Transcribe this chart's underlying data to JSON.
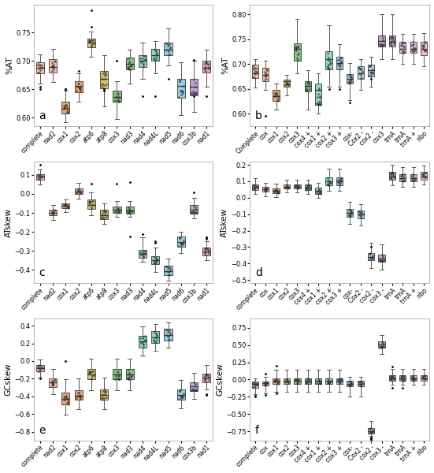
{
  "panel_a": {
    "label": "a",
    "ylabel": "%AT",
    "ylim": [
      0.585,
      0.8
    ],
    "yticks": [
      0.6,
      0.65,
      0.7,
      0.75
    ],
    "categories": [
      "complete",
      "nad2",
      "cox1",
      "cox2",
      "atp6",
      "atp8",
      "cox3",
      "nad3",
      "nad4",
      "nad4L",
      "nad5",
      "nad6",
      "cox3b",
      "nad1"
    ],
    "colors": [
      "#F4A080",
      "#F4A080",
      "#E07030",
      "#E07030",
      "#B8A020",
      "#B8A020",
      "#40A040",
      "#40A040",
      "#50C0A0",
      "#50C0A0",
      "#60B0D0",
      "#60B0D0",
      "#A070B0",
      "#E070A0"
    ],
    "stats": [
      {
        "med": 0.688,
        "q1": 0.678,
        "q3": 0.698,
        "whislo": 0.66,
        "whishi": 0.712,
        "fliers": [
          0.655,
          0.65
        ]
      },
      {
        "med": 0.69,
        "q1": 0.68,
        "q3": 0.703,
        "whislo": 0.663,
        "whishi": 0.722,
        "fliers": []
      },
      {
        "med": 0.615,
        "q1": 0.608,
        "q3": 0.628,
        "whislo": 0.592,
        "whishi": 0.648,
        "fliers": [
          0.65,
          0.65
        ]
      },
      {
        "med": 0.656,
        "q1": 0.645,
        "q3": 0.665,
        "whislo": 0.628,
        "whishi": 0.678,
        "fliers": [
          0.682
        ]
      },
      {
        "med": 0.733,
        "q1": 0.724,
        "q3": 0.74,
        "whislo": 0.708,
        "whishi": 0.752,
        "fliers": [
          0.76,
          0.79
        ]
      },
      {
        "med": 0.668,
        "q1": 0.652,
        "q3": 0.682,
        "whislo": 0.62,
        "whishi": 0.71,
        "fliers": [
          0.648,
          0.65
        ]
      },
      {
        "med": 0.637,
        "q1": 0.628,
        "q3": 0.648,
        "whislo": 0.598,
        "whishi": 0.665,
        "fliers": [
          0.7
        ]
      },
      {
        "med": 0.695,
        "q1": 0.685,
        "q3": 0.706,
        "whislo": 0.66,
        "whishi": 0.72,
        "fliers": []
      },
      {
        "med": 0.7,
        "q1": 0.69,
        "q3": 0.71,
        "whislo": 0.668,
        "whishi": 0.733,
        "fliers": [
          0.638
        ]
      },
      {
        "med": 0.71,
        "q1": 0.7,
        "q3": 0.722,
        "whislo": 0.678,
        "whishi": 0.735,
        "fliers": [
          0.638
        ]
      },
      {
        "med": 0.72,
        "q1": 0.71,
        "q3": 0.733,
        "whislo": 0.692,
        "whishi": 0.757,
        "fliers": [
          0.668
        ]
      },
      {
        "med": 0.656,
        "q1": 0.635,
        "q3": 0.668,
        "whislo": 0.605,
        "whishi": 0.698,
        "fliers": []
      },
      {
        "med": 0.655,
        "q1": 0.64,
        "q3": 0.668,
        "whislo": 0.61,
        "whishi": 0.7,
        "fliers": [
          0.638,
          0.702
        ]
      },
      {
        "med": 0.688,
        "q1": 0.68,
        "q3": 0.7,
        "whislo": 0.655,
        "whishi": 0.72,
        "fliers": [
          0.638
        ]
      }
    ]
  },
  "panel_b": {
    "label": "b",
    "ylabel": "%AT",
    "ylim": [
      0.575,
      0.82
    ],
    "yticks": [
      0.6,
      0.65,
      0.7,
      0.75,
      0.8
    ],
    "categories": [
      "Complete",
      "cox",
      "cox1",
      "cox2",
      "cox3",
      "cox4 +",
      "cox1 +",
      "cox2 +",
      "cox3 +",
      "cox-",
      "Cox2 -",
      "cox2 -",
      "cox3",
      "trnA",
      "trnA",
      "trnA +",
      "ribo"
    ],
    "colors": [
      "#F4A080",
      "#F4A080",
      "#E07030",
      "#B8A020",
      "#40A040",
      "#40A040",
      "#50C0A0",
      "#50C0A0",
      "#60B0D0",
      "#60B0D0",
      "#87BCCC",
      "#87BCCC",
      "#9A72AC",
      "#9A72AC",
      "#B898C8",
      "#D898C8",
      "#E898C8"
    ],
    "stats": [
      {
        "med": 0.682,
        "q1": 0.672,
        "q3": 0.698,
        "whislo": 0.652,
        "whishi": 0.71,
        "fliers": []
      },
      {
        "med": 0.678,
        "q1": 0.665,
        "q3": 0.692,
        "whislo": 0.648,
        "whishi": 0.706,
        "fliers": [
          0.595
        ]
      },
      {
        "med": 0.636,
        "q1": 0.626,
        "q3": 0.648,
        "whislo": 0.608,
        "whishi": 0.66,
        "fliers": []
      },
      {
        "med": 0.665,
        "q1": 0.655,
        "q3": 0.668,
        "whislo": 0.637,
        "whishi": 0.678,
        "fliers": []
      },
      {
        "med": 0.73,
        "q1": 0.706,
        "q3": 0.742,
        "whislo": 0.682,
        "whishi": 0.79,
        "fliers": []
      },
      {
        "med": 0.656,
        "q1": 0.645,
        "q3": 0.665,
        "whislo": 0.608,
        "whishi": 0.688,
        "fliers": []
      },
      {
        "med": 0.648,
        "q1": 0.618,
        "q3": 0.66,
        "whislo": 0.6,
        "whishi": 0.682,
        "fliers": [
          0.62
        ]
      },
      {
        "med": 0.71,
        "q1": 0.69,
        "q3": 0.725,
        "whislo": 0.655,
        "whishi": 0.778,
        "fliers": [
          0.65
        ]
      },
      {
        "med": 0.702,
        "q1": 0.69,
        "q3": 0.714,
        "whislo": 0.655,
        "whishi": 0.74,
        "fliers": [
          0.65
        ]
      },
      {
        "med": 0.67,
        "q1": 0.66,
        "q3": 0.68,
        "whislo": 0.628,
        "whishi": 0.702,
        "fliers": [
          0.622
        ]
      },
      {
        "med": 0.682,
        "q1": 0.67,
        "q3": 0.695,
        "whislo": 0.648,
        "whishi": 0.71,
        "fliers": []
      },
      {
        "med": 0.688,
        "q1": 0.675,
        "q3": 0.698,
        "whislo": 0.655,
        "whishi": 0.715,
        "fliers": [
          0.67
        ]
      },
      {
        "med": 0.746,
        "q1": 0.736,
        "q3": 0.758,
        "whislo": 0.71,
        "whishi": 0.8,
        "fliers": []
      },
      {
        "med": 0.745,
        "q1": 0.735,
        "q3": 0.758,
        "whislo": 0.71,
        "whishi": 0.8,
        "fliers": []
      },
      {
        "med": 0.73,
        "q1": 0.722,
        "q3": 0.745,
        "whislo": 0.7,
        "whishi": 0.76,
        "fliers": []
      },
      {
        "med": 0.73,
        "q1": 0.722,
        "q3": 0.745,
        "whislo": 0.7,
        "whishi": 0.76,
        "fliers": []
      },
      {
        "med": 0.73,
        "q1": 0.718,
        "q3": 0.745,
        "whislo": 0.695,
        "whishi": 0.762,
        "fliers": []
      }
    ]
  },
  "panel_c": {
    "label": "c",
    "ylabel": "ATskew",
    "ylim": [
      -0.47,
      0.17
    ],
    "yticks": [
      -0.4,
      -0.3,
      -0.2,
      -0.1,
      0.0,
      0.1
    ],
    "categories": [
      "complete",
      "nad2",
      "cox1",
      "cox2",
      "atp6",
      "atp8",
      "cox3",
      "nad3",
      "nad4",
      "nad4L",
      "nad5",
      "nad6",
      "cox3b",
      "nad1"
    ],
    "colors": [
      "#F4A080",
      "#F4A080",
      "#E07030",
      "#E07030",
      "#B8A020",
      "#B8A020",
      "#40A040",
      "#40A040",
      "#50C0A0",
      "#50C0A0",
      "#60B0D0",
      "#60B0D0",
      "#A070B0",
      "#E070A0"
    ],
    "stats": [
      {
        "med": 0.09,
        "q1": 0.075,
        "q3": 0.105,
        "whislo": 0.05,
        "whishi": 0.13,
        "fliers": [
          0.155
        ]
      },
      {
        "med": -0.098,
        "q1": -0.112,
        "q3": -0.082,
        "whislo": -0.135,
        "whishi": -0.058,
        "fliers": []
      },
      {
        "med": -0.062,
        "q1": -0.075,
        "q3": -0.048,
        "whislo": -0.095,
        "whishi": -0.028,
        "fliers": []
      },
      {
        "med": 0.012,
        "q1": 0.0,
        "q3": 0.03,
        "whislo": -0.025,
        "whishi": 0.058,
        "fliers": []
      },
      {
        "med": -0.058,
        "q1": -0.078,
        "q3": -0.028,
        "whislo": -0.112,
        "whishi": 0.01,
        "fliers": [
          0.055
        ]
      },
      {
        "med": -0.112,
        "q1": -0.132,
        "q3": -0.085,
        "whislo": -0.158,
        "whishi": -0.05,
        "fliers": []
      },
      {
        "med": -0.085,
        "q1": -0.098,
        "q3": -0.068,
        "whislo": -0.12,
        "whishi": -0.038,
        "fliers": [
          0.055
        ]
      },
      {
        "med": -0.088,
        "q1": -0.102,
        "q3": -0.068,
        "whislo": -0.12,
        "whishi": -0.038,
        "fliers": [
          0.06,
          -0.225
        ]
      },
      {
        "med": -0.315,
        "q1": -0.335,
        "q3": -0.295,
        "whislo": -0.358,
        "whishi": -0.23,
        "fliers": [
          -0.21
        ]
      },
      {
        "med": -0.35,
        "q1": -0.37,
        "q3": -0.328,
        "whislo": -0.41,
        "whishi": -0.28,
        "fliers": [
          -0.258,
          -0.25
        ]
      },
      {
        "med": -0.405,
        "q1": -0.428,
        "q3": -0.378,
        "whislo": -0.455,
        "whishi": -0.338,
        "fliers": []
      },
      {
        "med": -0.252,
        "q1": -0.278,
        "q3": -0.225,
        "whislo": -0.31,
        "whishi": -0.198,
        "fliers": []
      },
      {
        "med": -0.082,
        "q1": -0.102,
        "q3": -0.06,
        "whislo": -0.13,
        "whishi": -0.02,
        "fliers": [
          0.01
        ]
      },
      {
        "med": -0.302,
        "q1": -0.322,
        "q3": -0.28,
        "whislo": -0.348,
        "whishi": -0.248,
        "fliers": [
          -0.235,
          -0.23,
          -0.228
        ]
      }
    ]
  },
  "panel_d": {
    "label": "d",
    "ylabel": "ATskew",
    "ylim": [
      -0.52,
      0.22
    ],
    "yticks": [
      -0.5,
      -0.4,
      -0.3,
      -0.2,
      -0.1,
      0.0,
      0.1,
      0.2
    ],
    "categories": [
      "complete",
      "cox",
      "cox1",
      "cox2",
      "cox3",
      "cox4 +",
      "cox1 +",
      "cox2 +",
      "cox3 +",
      "cox-",
      "Cox2 -",
      "cox2 -",
      "cox3 -",
      "trnA",
      "trnA",
      "trnA +",
      "ribo"
    ],
    "colors": [
      "#F4A080",
      "#F4A080",
      "#E07030",
      "#B8A020",
      "#40A040",
      "#40A040",
      "#50C0A0",
      "#50C0A0",
      "#60B0D0",
      "#60B0D0",
      "#87BCCC",
      "#87BCCC",
      "#9A72AC",
      "#9A72AC",
      "#B898C8",
      "#D898C8",
      "#E898C8"
    ],
    "stats": [
      {
        "med": 0.062,
        "q1": 0.048,
        "q3": 0.082,
        "whislo": 0.025,
        "whishi": 0.118,
        "fliers": []
      },
      {
        "med": 0.052,
        "q1": 0.038,
        "q3": 0.065,
        "whislo": 0.01,
        "whishi": 0.09,
        "fliers": []
      },
      {
        "med": 0.04,
        "q1": 0.028,
        "q3": 0.055,
        "whislo": 0.005,
        "whishi": 0.085,
        "fliers": []
      },
      {
        "med": 0.068,
        "q1": 0.055,
        "q3": 0.082,
        "whislo": 0.035,
        "whishi": 0.11,
        "fliers": []
      },
      {
        "med": 0.068,
        "q1": 0.055,
        "q3": 0.082,
        "whislo": 0.035,
        "whishi": 0.11,
        "fliers": []
      },
      {
        "med": 0.06,
        "q1": 0.045,
        "q3": 0.08,
        "whislo": 0.025,
        "whishi": 0.11,
        "fliers": []
      },
      {
        "med": 0.042,
        "q1": 0.025,
        "q3": 0.06,
        "whislo": 0.0,
        "whishi": 0.09,
        "fliers": []
      },
      {
        "med": 0.098,
        "q1": 0.075,
        "q3": 0.122,
        "whislo": 0.04,
        "whishi": 0.175,
        "fliers": []
      },
      {
        "med": 0.098,
        "q1": 0.075,
        "q3": 0.122,
        "whislo": 0.04,
        "whishi": 0.175,
        "fliers": []
      },
      {
        "med": -0.092,
        "q1": -0.115,
        "q3": -0.068,
        "whislo": -0.16,
        "whishi": -0.025,
        "fliers": []
      },
      {
        "med": -0.102,
        "q1": -0.125,
        "q3": -0.078,
        "whislo": -0.17,
        "whishi": -0.04,
        "fliers": []
      },
      {
        "med": -0.358,
        "q1": -0.378,
        "q3": -0.335,
        "whislo": -0.425,
        "whishi": -0.272,
        "fliers": [
          -0.298
        ]
      },
      {
        "med": -0.368,
        "q1": -0.388,
        "q3": -0.345,
        "whislo": -0.435,
        "whishi": -0.282,
        "fliers": []
      },
      {
        "med": 0.13,
        "q1": 0.108,
        "q3": 0.158,
        "whislo": 0.075,
        "whishi": 0.198,
        "fliers": []
      },
      {
        "med": 0.12,
        "q1": 0.098,
        "q3": 0.145,
        "whislo": 0.068,
        "whishi": 0.185,
        "fliers": []
      },
      {
        "med": 0.12,
        "q1": 0.098,
        "q3": 0.145,
        "whislo": 0.068,
        "whishi": 0.185,
        "fliers": []
      },
      {
        "med": 0.13,
        "q1": 0.11,
        "q3": 0.155,
        "whislo": 0.08,
        "whishi": 0.195,
        "fliers": []
      }
    ]
  },
  "panel_e": {
    "label": "e",
    "ylabel": "GCskew",
    "ylim": [
      -0.9,
      0.48
    ],
    "yticks": [
      -0.8,
      -0.6,
      -0.4,
      -0.2,
      0.0,
      0.2,
      0.4
    ],
    "categories": [
      "complete",
      "nad2",
      "cox1",
      "cox2",
      "atp6",
      "atp8",
      "cox3",
      "nad3",
      "nad4",
      "nad4L",
      "nad5",
      "nad6",
      "cox3b",
      "nad1"
    ],
    "colors": [
      "#F4A080",
      "#F4A080",
      "#E07030",
      "#E07030",
      "#B8A020",
      "#B8A020",
      "#40A040",
      "#40A040",
      "#50C0A0",
      "#50C0A0",
      "#60B0D0",
      "#60B0D0",
      "#A070B0",
      "#E070A0"
    ],
    "stats": [
      {
        "med": -0.08,
        "q1": -0.12,
        "q3": -0.042,
        "whislo": -0.185,
        "whishi": 0.018,
        "fliers": [
          -0.2
        ]
      },
      {
        "med": -0.242,
        "q1": -0.292,
        "q3": -0.195,
        "whislo": -0.378,
        "whishi": -0.09,
        "fliers": []
      },
      {
        "med": -0.432,
        "q1": -0.49,
        "q3": -0.36,
        "whislo": -0.608,
        "whishi": -0.21,
        "fliers": [
          0.002
        ]
      },
      {
        "med": -0.392,
        "q1": -0.44,
        "q3": -0.332,
        "whislo": -0.545,
        "whishi": -0.2,
        "fliers": []
      },
      {
        "med": -0.152,
        "q1": -0.21,
        "q3": -0.092,
        "whislo": -0.328,
        "whishi": 0.028,
        "fliers": []
      },
      {
        "med": -0.382,
        "q1": -0.442,
        "q3": -0.322,
        "whislo": -0.548,
        "whishi": -0.192,
        "fliers": []
      },
      {
        "med": -0.152,
        "q1": -0.21,
        "q3": -0.092,
        "whislo": -0.328,
        "whishi": 0.028,
        "fliers": []
      },
      {
        "med": -0.152,
        "q1": -0.21,
        "q3": -0.092,
        "whislo": -0.328,
        "whishi": 0.028,
        "fliers": []
      },
      {
        "med": 0.22,
        "q1": 0.155,
        "q3": 0.29,
        "whislo": 0.06,
        "whishi": 0.39,
        "fliers": []
      },
      {
        "med": 0.27,
        "q1": 0.202,
        "q3": 0.342,
        "whislo": 0.112,
        "whishi": 0.42,
        "fliers": []
      },
      {
        "med": 0.295,
        "q1": 0.232,
        "q3": 0.368,
        "whislo": 0.148,
        "whishi": 0.44,
        "fliers": []
      },
      {
        "med": -0.382,
        "q1": -0.435,
        "q3": -0.325,
        "whislo": -0.54,
        "whishi": -0.212,
        "fliers": []
      },
      {
        "med": -0.29,
        "q1": -0.338,
        "q3": -0.24,
        "whislo": -0.428,
        "whishi": -0.132,
        "fliers": []
      },
      {
        "med": -0.192,
        "q1": -0.24,
        "q3": -0.142,
        "whislo": -0.318,
        "whishi": -0.042,
        "fliers": [
          -0.382,
          -0.372
        ]
      }
    ]
  },
  "panel_f": {
    "label": "f",
    "ylabel": "GCskew",
    "ylim": [
      -0.88,
      0.88
    ],
    "yticks": [
      -0.75,
      -0.5,
      -0.25,
      0.0,
      0.25,
      0.5,
      0.75
    ],
    "categories": [
      "complete",
      "cox",
      "cox1",
      "cox2",
      "cox3",
      "cox4 +",
      "cox1 +",
      "cox2 +",
      "cox3 +",
      "cox-",
      "Cox2 -",
      "cox2 -",
      "cox3 -",
      "trnA",
      "trnA",
      "trnA +",
      "ribo"
    ],
    "colors": [
      "#F4A080",
      "#F4A080",
      "#E07030",
      "#B8A020",
      "#40A040",
      "#40A040",
      "#50C0A0",
      "#50C0A0",
      "#60B0D0",
      "#60B0D0",
      "#87BCCC",
      "#87BCCC",
      "#9A72AC",
      "#9A72AC",
      "#B898C8",
      "#D898C8",
      "#E898C8"
    ],
    "stats": [
      {
        "med": -0.068,
        "q1": -0.115,
        "q3": -0.03,
        "whislo": -0.215,
        "whishi": 0.018,
        "fliers": [
          -0.248,
          -0.235
        ]
      },
      {
        "med": -0.055,
        "q1": -0.09,
        "q3": -0.025,
        "whislo": -0.195,
        "whishi": 0.045,
        "fliers": [
          -0.218,
          0.08
        ]
      },
      {
        "med": -0.018,
        "q1": -0.058,
        "q3": 0.022,
        "whislo": -0.178,
        "whishi": 0.138,
        "fliers": [
          -0.202,
          0.195
        ]
      },
      {
        "med": -0.018,
        "q1": -0.058,
        "q3": 0.022,
        "whislo": -0.178,
        "whishi": 0.138,
        "fliers": []
      },
      {
        "med": -0.018,
        "q1": -0.058,
        "q3": 0.022,
        "whislo": -0.178,
        "whishi": 0.138,
        "fliers": []
      },
      {
        "med": -0.018,
        "q1": -0.058,
        "q3": 0.022,
        "whislo": -0.178,
        "whishi": 0.138,
        "fliers": []
      },
      {
        "med": -0.018,
        "q1": -0.058,
        "q3": 0.022,
        "whislo": -0.178,
        "whishi": 0.138,
        "fliers": []
      },
      {
        "med": -0.018,
        "q1": -0.058,
        "q3": 0.022,
        "whislo": -0.178,
        "whishi": 0.138,
        "fliers": []
      },
      {
        "med": -0.018,
        "q1": -0.058,
        "q3": 0.022,
        "whislo": -0.178,
        "whishi": 0.138,
        "fliers": []
      },
      {
        "med": -0.058,
        "q1": -0.098,
        "q3": -0.02,
        "whislo": -0.248,
        "whishi": 0.038,
        "fliers": []
      },
      {
        "med": -0.058,
        "q1": -0.098,
        "q3": -0.02,
        "whislo": -0.248,
        "whishi": 0.038,
        "fliers": []
      },
      {
        "med": -0.752,
        "q1": -0.778,
        "q3": -0.7,
        "whislo": -0.82,
        "whishi": -0.6,
        "fliers": [
          -0.865,
          -0.858,
          -0.855,
          -0.85,
          -0.842
        ]
      },
      {
        "med": 0.505,
        "q1": 0.46,
        "q3": 0.548,
        "whislo": 0.375,
        "whishi": 0.648,
        "fliers": []
      },
      {
        "med": 0.02,
        "q1": -0.015,
        "q3": 0.058,
        "whislo": -0.078,
        "whishi": 0.158,
        "fliers": [
          -0.118,
          0.185
        ]
      },
      {
        "med": 0.02,
        "q1": -0.015,
        "q3": 0.058,
        "whislo": -0.078,
        "whishi": 0.158,
        "fliers": [
          -0.118
        ]
      },
      {
        "med": 0.02,
        "q1": -0.015,
        "q3": 0.058,
        "whislo": -0.078,
        "whishi": 0.158,
        "fliers": []
      },
      {
        "med": 0.02,
        "q1": -0.015,
        "q3": 0.058,
        "whislo": -0.078,
        "whishi": 0.158,
        "fliers": []
      }
    ]
  }
}
